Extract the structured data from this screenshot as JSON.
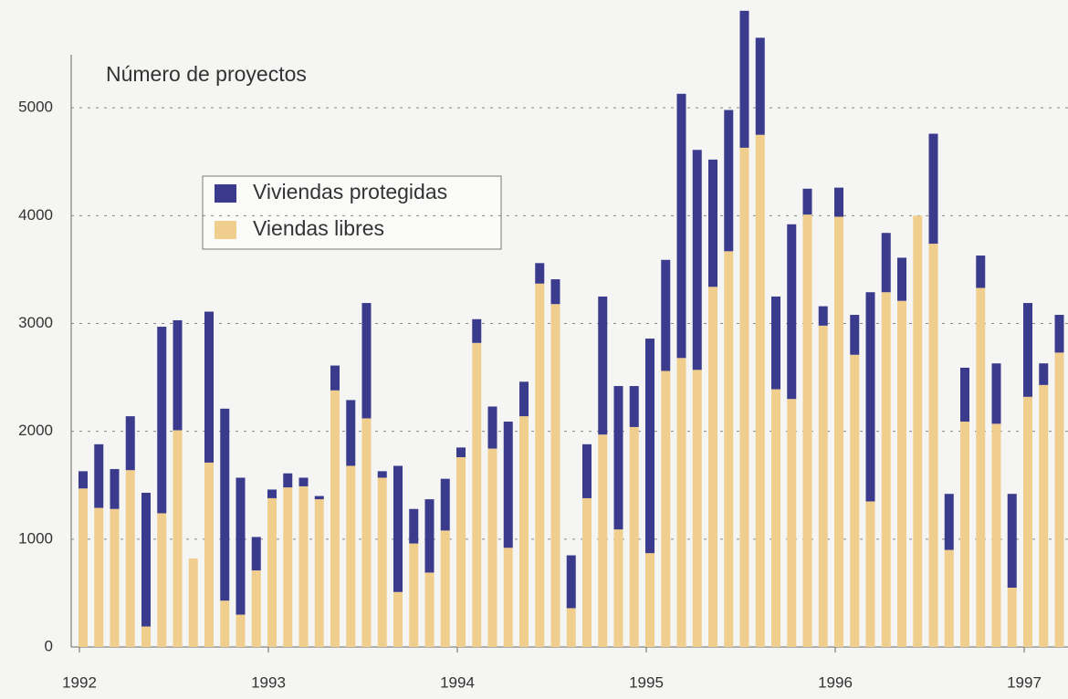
{
  "chart_data": {
    "type": "stacked_bar",
    "annotation": "Número de proyectos",
    "categories": [
      "1992",
      null,
      null,
      null,
      null,
      null,
      null,
      null,
      null,
      null,
      null,
      null,
      "1993",
      null,
      null,
      null,
      null,
      null,
      null,
      null,
      null,
      null,
      null,
      null,
      "1994",
      null,
      null,
      null,
      null,
      null,
      null,
      null,
      null,
      null,
      null,
      null,
      "1995",
      null,
      null,
      null,
      null,
      null,
      null,
      null,
      null,
      null,
      null,
      null,
      "1996",
      null,
      null,
      null,
      null,
      null,
      null,
      null,
      null,
      null,
      null,
      null,
      "1997",
      null,
      null
    ],
    "series": [
      {
        "name": "Viviendas protegidas",
        "color": "#3b3b8e",
        "values": [
          160,
          590,
          370,
          500,
          1240,
          1730,
          1020,
          0,
          1400,
          1780,
          1270,
          310,
          80,
          130,
          80,
          30,
          230,
          610,
          1070,
          60,
          1170,
          320,
          680,
          480,
          90,
          220,
          390,
          1170,
          320,
          190,
          230,
          490,
          500,
          1280,
          1330,
          380,
          1990,
          1030,
          2450,
          2040,
          1180,
          1310,
          1270,
          900,
          860,
          1620,
          240,
          180,
          270,
          370,
          1940,
          550,
          400,
          0,
          1020,
          520,
          500,
          300,
          560,
          870,
          870,
          200,
          350
        ]
      },
      {
        "name": "Viendas libres",
        "color": "#f0cf8e",
        "values": [
          1470,
          1290,
          1280,
          1640,
          190,
          1240,
          2010,
          820,
          1710,
          430,
          300,
          710,
          1380,
          1480,
          1490,
          1370,
          2380,
          1680,
          2120,
          1570,
          510,
          960,
          690,
          1080,
          1760,
          2820,
          1840,
          920,
          2140,
          3370,
          3180,
          360,
          1380,
          1970,
          1090,
          2040,
          870,
          2560,
          2680,
          2570,
          3340,
          3670,
          4630,
          4750,
          2390,
          2300,
          4010,
          2980,
          3990,
          2710,
          1350,
          3290,
          3210,
          4000,
          3740,
          900,
          2090,
          3330,
          2070,
          550,
          2320,
          2430,
          2730
        ]
      }
    ],
    "ylim": [
      0,
      6000
    ],
    "yticks": [
      0,
      1000,
      2000,
      3000,
      4000,
      5000
    ],
    "grid": true
  }
}
